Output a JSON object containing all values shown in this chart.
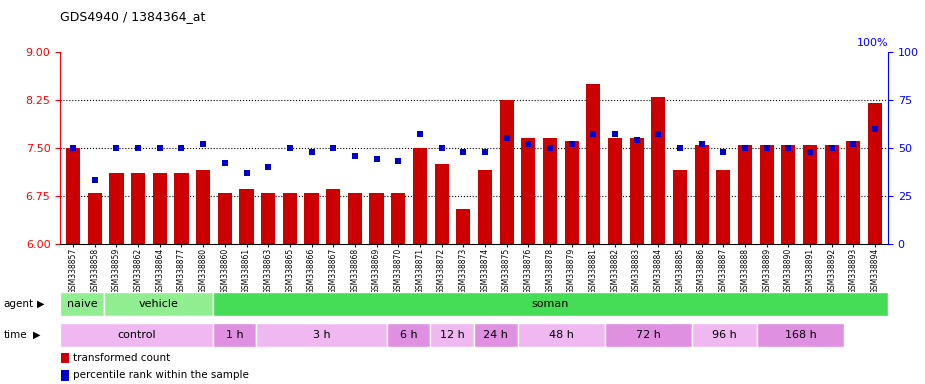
{
  "title": "GDS4940 / 1384364_at",
  "samples": [
    "GSM338857",
    "GSM338858",
    "GSM338859",
    "GSM338862",
    "GSM338864",
    "GSM338877",
    "GSM338880",
    "GSM338860",
    "GSM338861",
    "GSM338863",
    "GSM338865",
    "GSM338866",
    "GSM338867",
    "GSM338868",
    "GSM338869",
    "GSM338870",
    "GSM338871",
    "GSM338872",
    "GSM338873",
    "GSM338874",
    "GSM338875",
    "GSM338876",
    "GSM338878",
    "GSM338879",
    "GSM338881",
    "GSM338882",
    "GSM338883",
    "GSM338884",
    "GSM338885",
    "GSM338886",
    "GSM338887",
    "GSM338888",
    "GSM338889",
    "GSM338890",
    "GSM338891",
    "GSM338892",
    "GSM338893",
    "GSM338894"
  ],
  "red_values": [
    7.5,
    6.8,
    7.1,
    7.1,
    7.1,
    7.1,
    7.15,
    6.8,
    6.85,
    6.8,
    6.8,
    6.8,
    6.85,
    6.8,
    6.8,
    6.8,
    7.5,
    7.25,
    6.55,
    7.15,
    8.25,
    7.65,
    7.65,
    7.6,
    8.5,
    7.65,
    7.65,
    8.3,
    7.15,
    7.55,
    7.15,
    7.55,
    7.55,
    7.55,
    7.55,
    7.55,
    7.6,
    8.2
  ],
  "blue_percentiles": [
    50,
    33,
    50,
    50,
    50,
    50,
    52,
    42,
    37,
    40,
    50,
    48,
    50,
    46,
    44,
    43,
    57,
    50,
    48,
    48,
    55,
    52,
    50,
    52,
    57,
    57,
    54,
    57,
    50,
    52,
    48,
    50,
    50,
    50,
    48,
    50,
    52,
    60
  ],
  "ymin": 6.0,
  "ymax": 9.0,
  "yticks_left": [
    6,
    6.75,
    7.5,
    8.25,
    9
  ],
  "yticks_right": [
    0,
    25,
    50,
    75,
    100
  ],
  "hlines": [
    6.75,
    7.5,
    8.25
  ],
  "agent_defs": [
    {
      "label": "naive",
      "n": 2,
      "color": "#90EE90"
    },
    {
      "label": "vehicle",
      "n": 5,
      "color": "#90EE90"
    },
    {
      "label": "soman",
      "n": 31,
      "color": "#44DD55"
    }
  ],
  "time_groups": [
    {
      "label": "control",
      "n": 7
    },
    {
      "label": "1 h",
      "n": 2
    },
    {
      "label": "3 h",
      "n": 6
    },
    {
      "label": "6 h",
      "n": 2
    },
    {
      "label": "12 h",
      "n": 2
    },
    {
      "label": "24 h",
      "n": 2
    },
    {
      "label": "48 h",
      "n": 4
    },
    {
      "label": "72 h",
      "n": 4
    },
    {
      "label": "96 h",
      "n": 3
    },
    {
      "label": "168 h",
      "n": 4
    }
  ],
  "time_colors": [
    "#F0B8F0",
    "#E090E0"
  ],
  "bar_color": "#CC0000",
  "dot_color": "#0000CC",
  "background_color": "#FFFFFF",
  "plot_bg_color": "#FFFFFF",
  "tick_bg_color": "#DDDDDD"
}
